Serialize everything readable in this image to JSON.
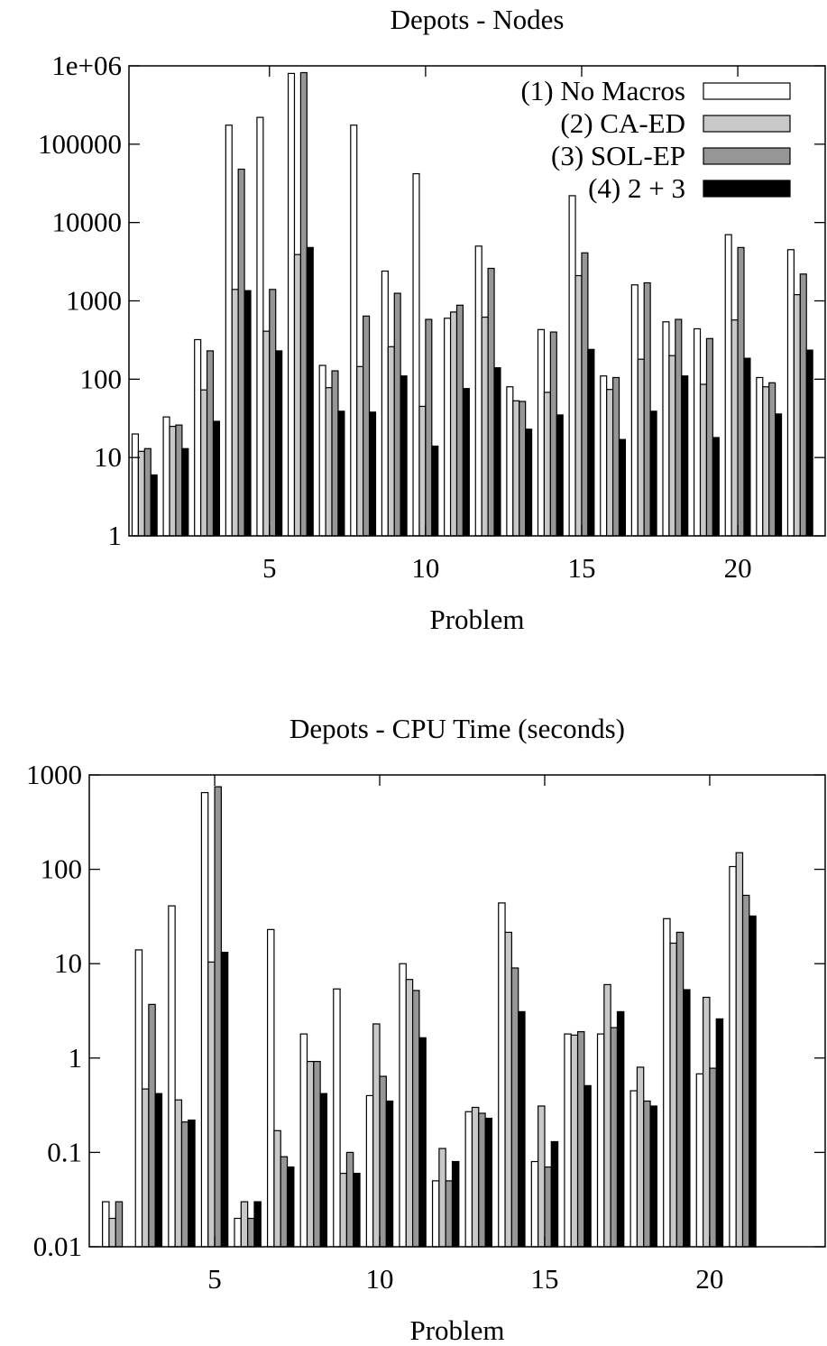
{
  "chart_data": [
    {
      "type": "bar",
      "title": "Depots - Nodes",
      "xlabel": "Problem",
      "ylabel": "",
      "yscale": "log",
      "ylim": [
        1,
        1000000
      ],
      "yticks": [
        1,
        10,
        100,
        1000,
        10000,
        100000,
        1000000
      ],
      "ytick_labels": [
        "1",
        "10",
        "100",
        "1000",
        "10000",
        "100000",
        "1e+06"
      ],
      "xlim": [
        0.5,
        22.8
      ],
      "xticks": [
        5,
        10,
        15,
        20
      ],
      "xtick_labels": [
        "5",
        "10",
        "15",
        "20"
      ],
      "legend": "top-right",
      "categories": [
        1,
        2,
        3,
        4,
        5,
        6,
        7,
        8,
        9,
        10,
        11,
        12,
        13,
        14,
        15,
        16,
        17,
        18,
        19,
        20,
        21,
        22
      ],
      "series": [
        {
          "name": "(1) No Macros",
          "color": "#ffffff",
          "values": [
            20,
            33,
            320,
            175000,
            220000,
            800000,
            150,
            175000,
            2400,
            42000,
            600,
            5000,
            80,
            430,
            22000,
            110,
            1600,
            540,
            440,
            7000,
            105,
            4500
          ]
        },
        {
          "name": "(2) CA-ED",
          "color": "#c8c8c8",
          "values": [
            12,
            25,
            73,
            1400,
            410,
            3900,
            78,
            145,
            260,
            45,
            720,
            620,
            53,
            68,
            2100,
            74,
            180,
            200,
            86,
            570,
            80,
            1200
          ]
        },
        {
          "name": "(3) SOL-EP",
          "color": "#969696",
          "values": [
            13,
            26,
            230,
            48000,
            1400,
            820000,
            128,
            640,
            1250,
            580,
            880,
            2600,
            52,
            400,
            4100,
            105,
            1700,
            580,
            330,
            4800,
            90,
            2200
          ]
        },
        {
          "name": "(4) 2 + 3",
          "color": "#000000",
          "values": [
            6,
            13,
            29,
            1350,
            230,
            4800,
            39,
            38,
            110,
            14,
            76,
            140,
            23,
            35,
            240,
            17,
            39,
            110,
            18,
            185,
            36,
            235
          ]
        }
      ]
    },
    {
      "type": "bar",
      "title": "Depots - CPU Time (seconds)",
      "xlabel": "Problem",
      "ylabel": "",
      "yscale": "log",
      "ylim": [
        0.01,
        1000
      ],
      "yticks": [
        0.01,
        0.1,
        1,
        10,
        100,
        1000
      ],
      "ytick_labels": [
        "0.01",
        "0.1",
        "1",
        "10",
        "100",
        "1000"
      ],
      "xlim": [
        1.2,
        23.5
      ],
      "xticks": [
        5,
        10,
        15,
        20
      ],
      "xtick_labels": [
        "5",
        "10",
        "15",
        "20"
      ],
      "categories": [
        1,
        2,
        3,
        4,
        5,
        6,
        7,
        8,
        9,
        10,
        11,
        12,
        13,
        14,
        15,
        16,
        17,
        18,
        19,
        20,
        21,
        22
      ],
      "series": [
        {
          "name": "(1) No Macros",
          "color": "#ffffff",
          "values": [
            0.01,
            0.03,
            14,
            41,
            650,
            0.02,
            23,
            1.8,
            5.4,
            0.4,
            10,
            0.05,
            0.27,
            44,
            0.08,
            1.8,
            1.8,
            0.45,
            30,
            0.68,
            107,
            0.01
          ]
        },
        {
          "name": "(2) CA-ED",
          "color": "#c8c8c8",
          "values": [
            0.01,
            0.02,
            0.47,
            0.36,
            10.4,
            0.03,
            0.17,
            0.92,
            0.06,
            2.3,
            6.8,
            0.11,
            0.3,
            21.5,
            0.31,
            1.75,
            6,
            0.8,
            16.5,
            4.4,
            150,
            0.01
          ]
        },
        {
          "name": "(3) SOL-EP",
          "color": "#969696",
          "values": [
            0.01,
            0.03,
            3.7,
            0.21,
            750,
            0.02,
            0.09,
            0.92,
            0.1,
            0.64,
            5.2,
            0.05,
            0.26,
            9,
            0.07,
            1.9,
            2.1,
            0.35,
            21.5,
            0.78,
            53,
            0.01
          ]
        },
        {
          "name": "(4) 2 + 3",
          "color": "#000000",
          "values": [
            0.01,
            0.01,
            0.42,
            0.22,
            13.2,
            0.03,
            0.07,
            0.42,
            0.06,
            0.35,
            1.64,
            0.08,
            0.23,
            3.1,
            0.13,
            0.51,
            3.1,
            0.31,
            5.3,
            2.6,
            32,
            0.01
          ]
        }
      ]
    }
  ]
}
